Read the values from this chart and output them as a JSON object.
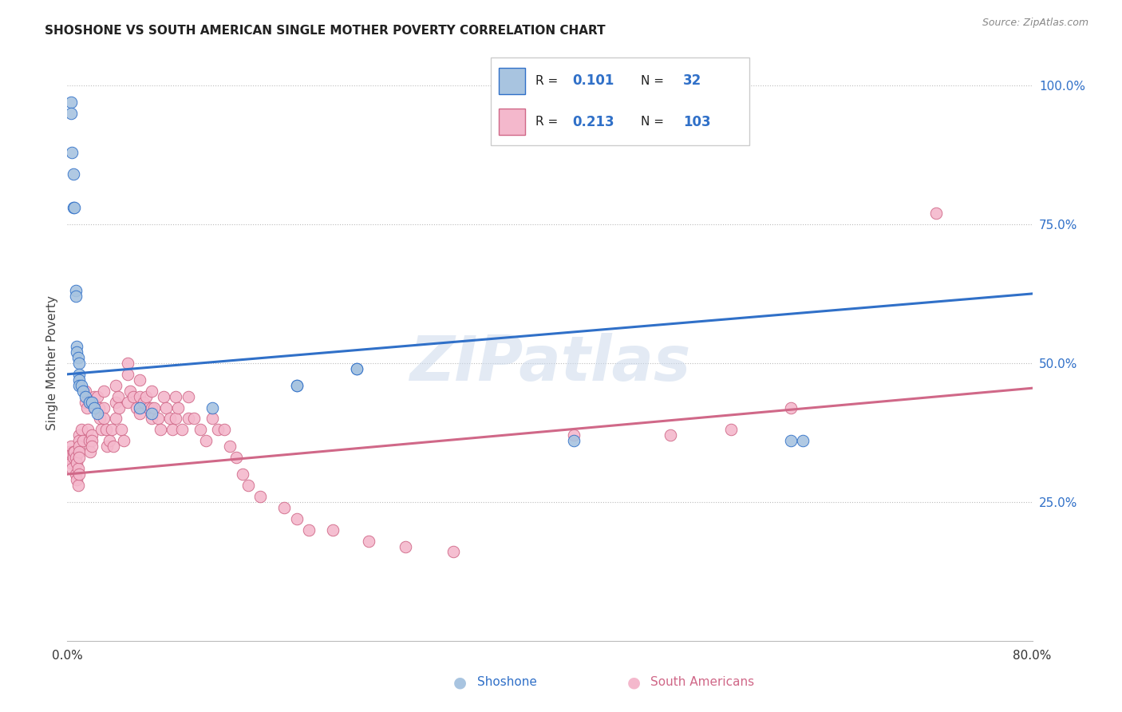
{
  "title": "SHOSHONE VS SOUTH AMERICAN SINGLE MOTHER POVERTY CORRELATION CHART",
  "source": "Source: ZipAtlas.com",
  "ylabel": "Single Mother Poverty",
  "x_min": 0.0,
  "x_max": 0.8,
  "y_min": 0.0,
  "y_max": 1.0,
  "legend_shoshone_R": "0.101",
  "legend_shoshone_N": "32",
  "legend_sa_R": "0.213",
  "legend_sa_N": "103",
  "shoshone_color": "#a8c4e0",
  "sa_color": "#f4b8cc",
  "shoshone_line_color": "#3070c8",
  "sa_line_color": "#d06888",
  "watermark": "ZIPatlas",
  "shoshone_line_start": 0.48,
  "shoshone_line_end": 0.625,
  "sa_line_start": 0.3,
  "sa_line_end": 0.455,
  "shoshone_x": [
    0.003,
    0.003,
    0.004,
    0.005,
    0.005,
    0.006,
    0.007,
    0.007,
    0.008,
    0.008,
    0.009,
    0.01,
    0.01,
    0.01,
    0.01,
    0.012,
    0.013,
    0.015,
    0.018,
    0.02,
    0.022,
    0.025,
    0.06,
    0.07,
    0.12,
    0.19,
    0.19,
    0.24,
    0.24,
    0.42,
    0.6,
    0.61
  ],
  "shoshone_y": [
    0.97,
    0.95,
    0.88,
    0.84,
    0.78,
    0.78,
    0.63,
    0.62,
    0.53,
    0.52,
    0.51,
    0.5,
    0.48,
    0.47,
    0.46,
    0.46,
    0.45,
    0.44,
    0.43,
    0.43,
    0.42,
    0.41,
    0.42,
    0.41,
    0.42,
    0.46,
    0.46,
    0.49,
    0.49,
    0.36,
    0.36,
    0.36
  ],
  "sa_x": [
    0.001,
    0.002,
    0.003,
    0.003,
    0.004,
    0.005,
    0.005,
    0.006,
    0.007,
    0.007,
    0.008,
    0.008,
    0.009,
    0.009,
    0.01,
    0.01,
    0.01,
    0.01,
    0.01,
    0.01,
    0.012,
    0.013,
    0.015,
    0.015,
    0.016,
    0.017,
    0.018,
    0.019,
    0.02,
    0.02,
    0.02,
    0.022,
    0.023,
    0.025,
    0.026,
    0.027,
    0.028,
    0.03,
    0.03,
    0.03,
    0.032,
    0.033,
    0.035,
    0.037,
    0.038,
    0.04,
    0.04,
    0.04,
    0.042,
    0.043,
    0.045,
    0.047,
    0.05,
    0.05,
    0.05,
    0.052,
    0.055,
    0.057,
    0.06,
    0.06,
    0.06,
    0.063,
    0.065,
    0.067,
    0.07,
    0.07,
    0.07,
    0.072,
    0.075,
    0.077,
    0.08,
    0.082,
    0.085,
    0.087,
    0.09,
    0.09,
    0.092,
    0.095,
    0.1,
    0.1,
    0.105,
    0.11,
    0.115,
    0.12,
    0.125,
    0.13,
    0.135,
    0.14,
    0.145,
    0.15,
    0.16,
    0.18,
    0.19,
    0.2,
    0.22,
    0.25,
    0.28,
    0.32,
    0.42,
    0.5,
    0.55,
    0.6,
    0.72
  ],
  "sa_y": [
    0.33,
    0.34,
    0.35,
    0.32,
    0.31,
    0.34,
    0.33,
    0.34,
    0.33,
    0.3,
    0.32,
    0.29,
    0.31,
    0.28,
    0.37,
    0.36,
    0.35,
    0.34,
    0.33,
    0.3,
    0.38,
    0.36,
    0.45,
    0.43,
    0.42,
    0.38,
    0.36,
    0.34,
    0.37,
    0.36,
    0.35,
    0.44,
    0.42,
    0.44,
    0.42,
    0.4,
    0.38,
    0.45,
    0.42,
    0.4,
    0.38,
    0.35,
    0.36,
    0.38,
    0.35,
    0.46,
    0.43,
    0.4,
    0.44,
    0.42,
    0.38,
    0.36,
    0.5,
    0.48,
    0.43,
    0.45,
    0.44,
    0.42,
    0.47,
    0.44,
    0.41,
    0.43,
    0.44,
    0.42,
    0.45,
    0.42,
    0.4,
    0.42,
    0.4,
    0.38,
    0.44,
    0.42,
    0.4,
    0.38,
    0.44,
    0.4,
    0.42,
    0.38,
    0.44,
    0.4,
    0.4,
    0.38,
    0.36,
    0.4,
    0.38,
    0.38,
    0.35,
    0.33,
    0.3,
    0.28,
    0.26,
    0.24,
    0.22,
    0.2,
    0.2,
    0.18,
    0.17,
    0.16,
    0.37,
    0.37,
    0.38,
    0.42,
    0.77
  ]
}
